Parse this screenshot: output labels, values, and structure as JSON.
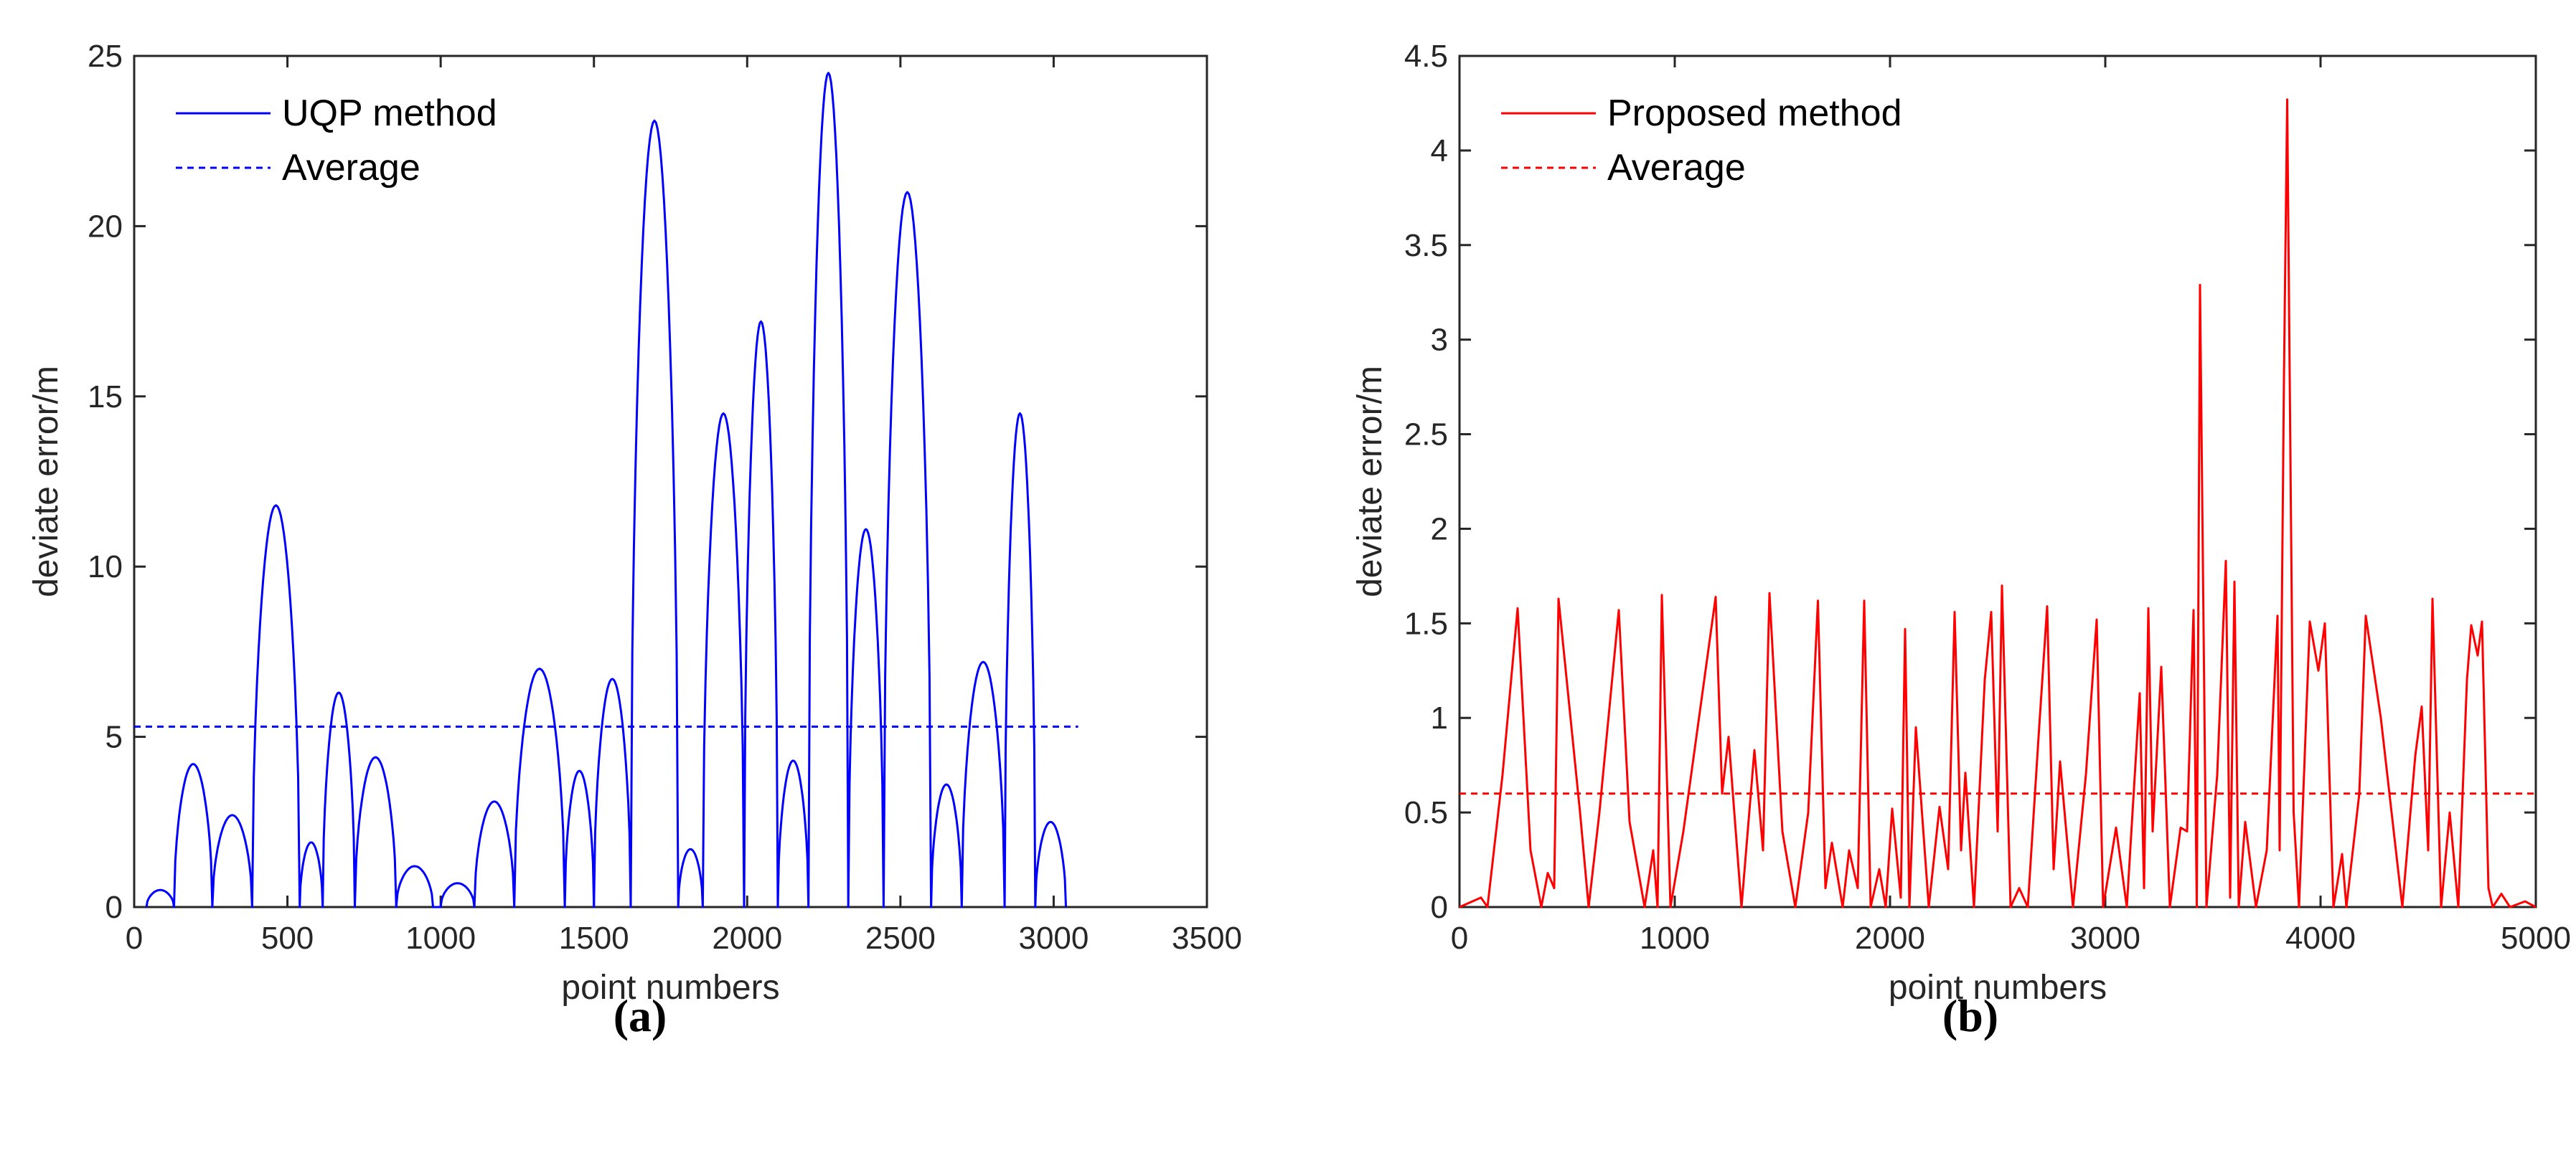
{
  "chart_data": [
    {
      "type": "line",
      "panel_label": "(a)",
      "xlabel": "point numbers",
      "ylabel": "deviate error/m",
      "xlim": [
        0,
        3500
      ],
      "ylim": [
        0,
        25
      ],
      "xticks": [
        "0",
        "500",
        "1000",
        "1500",
        "2000",
        "2500",
        "3000",
        "3500"
      ],
      "yticks": [
        "0",
        "5",
        "10",
        "15",
        "20",
        "25"
      ],
      "legend_position": "top-left",
      "line_color": "#0000ff",
      "series": [
        {
          "name": "UQP method",
          "style": "solid",
          "arches": [
            [
              40,
              130,
              0.5
            ],
            [
              130,
              255,
              4.2
            ],
            [
              255,
              385,
              2.7
            ],
            [
              385,
              540,
              11.8
            ],
            [
              540,
              615,
              1.9
            ],
            [
              615,
              720,
              6.3
            ],
            [
              720,
              855,
              4.4
            ],
            [
              855,
              975,
              1.2
            ],
            [
              1000,
              1110,
              0.7
            ],
            [
              1110,
              1240,
              3.1
            ],
            [
              1240,
              1405,
              7.0
            ],
            [
              1405,
              1500,
              4.0
            ],
            [
              1500,
              1620,
              6.7
            ],
            [
              1620,
              1775,
              23.1
            ],
            [
              1775,
              1855,
              1.7
            ],
            [
              1855,
              1990,
              14.5
            ],
            [
              1990,
              2100,
              17.2
            ],
            [
              2100,
              2200,
              4.3
            ],
            [
              2200,
              2330,
              24.5
            ],
            [
              2330,
              2445,
              11.1
            ],
            [
              2445,
              2600,
              21.0
            ],
            [
              2600,
              2700,
              3.6
            ],
            [
              2700,
              2840,
              7.2
            ],
            [
              2840,
              2940,
              14.5
            ],
            [
              2940,
              3040,
              2.5
            ]
          ]
        },
        {
          "name": "Average",
          "style": "dashed",
          "value": 5.3,
          "x_range": [
            0,
            3080
          ]
        }
      ]
    },
    {
      "type": "line",
      "panel_label": "(b)",
      "xlabel": "point numbers",
      "ylabel": "deviate error/m",
      "xlim": [
        0,
        5000
      ],
      "ylim": [
        0,
        4.5
      ],
      "xticks": [
        "0",
        "1000",
        "2000",
        "3000",
        "4000",
        "5000"
      ],
      "yticks": [
        "0",
        "0.5",
        "1",
        "1.5",
        "2",
        "2.5",
        "3",
        "3.5",
        "4",
        "4.5"
      ],
      "legend_position": "top-left",
      "line_color": "#ff0000",
      "series": [
        {
          "name": "Proposed method",
          "style": "solid",
          "points": [
            [
              0,
              0
            ],
            [
              60,
              0.03
            ],
            [
              100,
              0.05
            ],
            [
              130,
              0
            ],
            [
              200,
              0.7
            ],
            [
              270,
              1.58
            ],
            [
              330,
              0.3
            ],
            [
              380,
              0
            ],
            [
              410,
              0.18
            ],
            [
              440,
              0.1
            ],
            [
              460,
              1.63
            ],
            [
              560,
              0.5
            ],
            [
              600,
              0
            ],
            [
              650,
              0.5
            ],
            [
              740,
              1.57
            ],
            [
              790,
              0.45
            ],
            [
              860,
              0
            ],
            [
              900,
              0.3
            ],
            [
              920,
              0
            ],
            [
              940,
              1.65
            ],
            [
              980,
              0
            ],
            [
              1040,
              0.4
            ],
            [
              1190,
              1.64
            ],
            [
              1220,
              0.6
            ],
            [
              1250,
              0.9
            ],
            [
              1290,
              0.3
            ],
            [
              1310,
              0
            ],
            [
              1370,
              0.83
            ],
            [
              1410,
              0.3
            ],
            [
              1440,
              1.66
            ],
            [
              1500,
              0.4
            ],
            [
              1560,
              0
            ],
            [
              1620,
              0.5
            ],
            [
              1665,
              1.62
            ],
            [
              1700,
              0.1
            ],
            [
              1730,
              0.34
            ],
            [
              1780,
              0
            ],
            [
              1810,
              0.3
            ],
            [
              1850,
              0.1
            ],
            [
              1880,
              1.62
            ],
            [
              1910,
              0
            ],
            [
              1950,
              0.2
            ],
            [
              1980,
              0
            ],
            [
              2010,
              0.52
            ],
            [
              2050,
              0.05
            ],
            [
              2070,
              1.47
            ],
            [
              2090,
              0
            ],
            [
              2120,
              0.95
            ],
            [
              2180,
              0
            ],
            [
              2230,
              0.53
            ],
            [
              2270,
              0.2
            ],
            [
              2300,
              1.56
            ],
            [
              2330,
              0.3
            ],
            [
              2350,
              0.71
            ],
            [
              2390,
              0
            ],
            [
              2440,
              1.2
            ],
            [
              2470,
              1.56
            ],
            [
              2500,
              0.4
            ],
            [
              2520,
              1.7
            ],
            [
              2560,
              0
            ],
            [
              2600,
              0.1
            ],
            [
              2640,
              0
            ],
            [
              2690,
              0.9
            ],
            [
              2730,
              1.59
            ],
            [
              2760,
              0.2
            ],
            [
              2790,
              0.77
            ],
            [
              2850,
              0
            ],
            [
              2910,
              0.7
            ],
            [
              2960,
              1.52
            ],
            [
              2990,
              0
            ],
            [
              3050,
              0.42
            ],
            [
              3100,
              0
            ],
            [
              3160,
              1.13
            ],
            [
              3180,
              0.1
            ],
            [
              3200,
              1.58
            ],
            [
              3220,
              0.4
            ],
            [
              3260,
              1.27
            ],
            [
              3300,
              0
            ],
            [
              3350,
              0.42
            ],
            [
              3380,
              0.4
            ],
            [
              3410,
              1.57
            ],
            [
              3425,
              0
            ],
            [
              3440,
              3.29
            ],
            [
              3470,
              0
            ],
            [
              3520,
              0.7
            ],
            [
              3560,
              1.83
            ],
            [
              3580,
              0.05
            ],
            [
              3600,
              1.72
            ],
            [
              3620,
              0
            ],
            [
              3650,
              0.45
            ],
            [
              3700,
              0
            ],
            [
              3750,
              0.3
            ],
            [
              3800,
              1.54
            ],
            [
              3810,
              0.3
            ],
            [
              3830,
              2.8
            ],
            [
              3845,
              4.27
            ],
            [
              3875,
              0.5
            ],
            [
              3900,
              0
            ],
            [
              3950,
              1.51
            ],
            [
              3990,
              1.25
            ],
            [
              4020,
              1.5
            ],
            [
              4060,
              0
            ],
            [
              4100,
              0.28
            ],
            [
              4120,
              0
            ],
            [
              4180,
              0.6
            ],
            [
              4210,
              1.54
            ],
            [
              4280,
              1.0
            ],
            [
              4350,
              0.3
            ],
            [
              4380,
              0
            ],
            [
              4440,
              0.8
            ],
            [
              4470,
              1.06
            ],
            [
              4500,
              0.3
            ],
            [
              4520,
              1.63
            ],
            [
              4560,
              0
            ],
            [
              4600,
              0.5
            ],
            [
              4640,
              0
            ],
            [
              4680,
              1.2
            ],
            [
              4700,
              1.49
            ],
            [
              4730,
              1.33
            ],
            [
              4750,
              1.51
            ],
            [
              4780,
              0.1
            ],
            [
              4800,
              0
            ],
            [
              4840,
              0.07
            ],
            [
              4880,
              0
            ],
            [
              4950,
              0.03
            ],
            [
              5000,
              0
            ]
          ]
        },
        {
          "name": "Average",
          "style": "dashed",
          "value": 0.6,
          "x_range": [
            0,
            5000
          ]
        }
      ]
    }
  ]
}
